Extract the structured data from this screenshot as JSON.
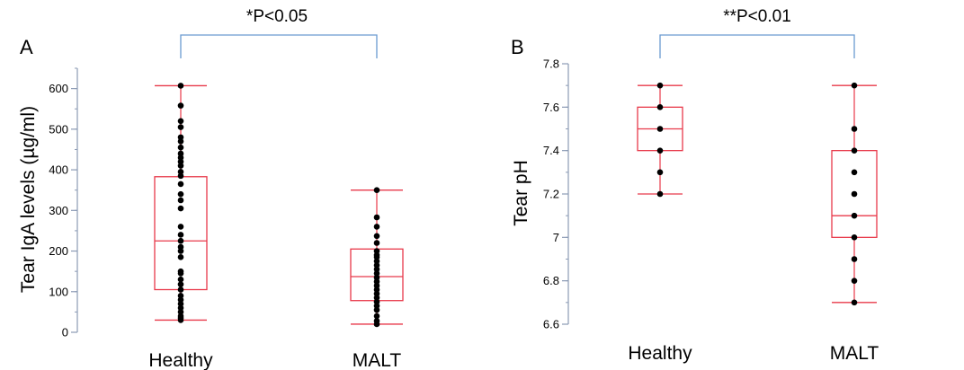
{
  "colors": {
    "box": "#e8394a",
    "axis": "#8c9bb5",
    "bracket": "#6b9bd1",
    "point": "#000000"
  },
  "chart_data": [
    {
      "type": "box",
      "panel": "A",
      "ylabel": "Tear IgA levels (µg/ml)",
      "ylim": [
        0,
        650
      ],
      "yticks": [
        0,
        100,
        200,
        300,
        400,
        500,
        600
      ],
      "yticklabels": [
        "0",
        "100",
        "200",
        "300",
        "400",
        "500",
        "600"
      ],
      "minor_tick_step": 50,
      "categories": [
        "Healthy",
        "MALT"
      ],
      "significance": "*P<0.05",
      "boxes": [
        {
          "category": "Healthy",
          "min": 30,
          "q1": 105,
          "median": 225,
          "q3": 383,
          "max": 607,
          "points": [
            607,
            558,
            520,
            505,
            480,
            470,
            455,
            440,
            430,
            420,
            410,
            395,
            385,
            365,
            340,
            325,
            305,
            260,
            240,
            225,
            210,
            200,
            185,
            150,
            145,
            130,
            118,
            105,
            90,
            80,
            70,
            60,
            50,
            40,
            35,
            30
          ]
        },
        {
          "category": "MALT",
          "min": 20,
          "q1": 78,
          "median": 137,
          "q3": 205,
          "max": 350,
          "points": [
            350,
            283,
            260,
            237,
            220,
            200,
            190,
            185,
            175,
            165,
            155,
            145,
            135,
            125,
            115,
            105,
            95,
            85,
            75,
            65,
            55,
            40,
            28,
            20
          ]
        }
      ]
    },
    {
      "type": "box",
      "panel": "B",
      "ylabel": "Tear pH",
      "ylim": [
        6.6,
        7.8
      ],
      "yticks": [
        6.6,
        6.8,
        7.0,
        7.2,
        7.4,
        7.6,
        7.8
      ],
      "yticklabels": [
        "6.6",
        "6.8",
        "7",
        "7.2",
        "7.4",
        "7.6",
        "7.8"
      ],
      "minor_tick_step": 0.1,
      "categories": [
        "Healthy",
        "MALT"
      ],
      "significance": "**P<0.01",
      "boxes": [
        {
          "category": "Healthy",
          "min": 7.2,
          "q1": 7.4,
          "median": 7.5,
          "q3": 7.6,
          "max": 7.7,
          "points": [
            7.7,
            7.6,
            7.5,
            7.4,
            7.3,
            7.2
          ]
        },
        {
          "category": "MALT",
          "min": 6.7,
          "q1": 7.0,
          "median": 7.1,
          "q3": 7.4,
          "max": 7.7,
          "points": [
            7.7,
            7.5,
            7.4,
            7.3,
            7.2,
            7.1,
            7.0,
            6.9,
            6.8,
            6.7
          ]
        }
      ]
    }
  ]
}
